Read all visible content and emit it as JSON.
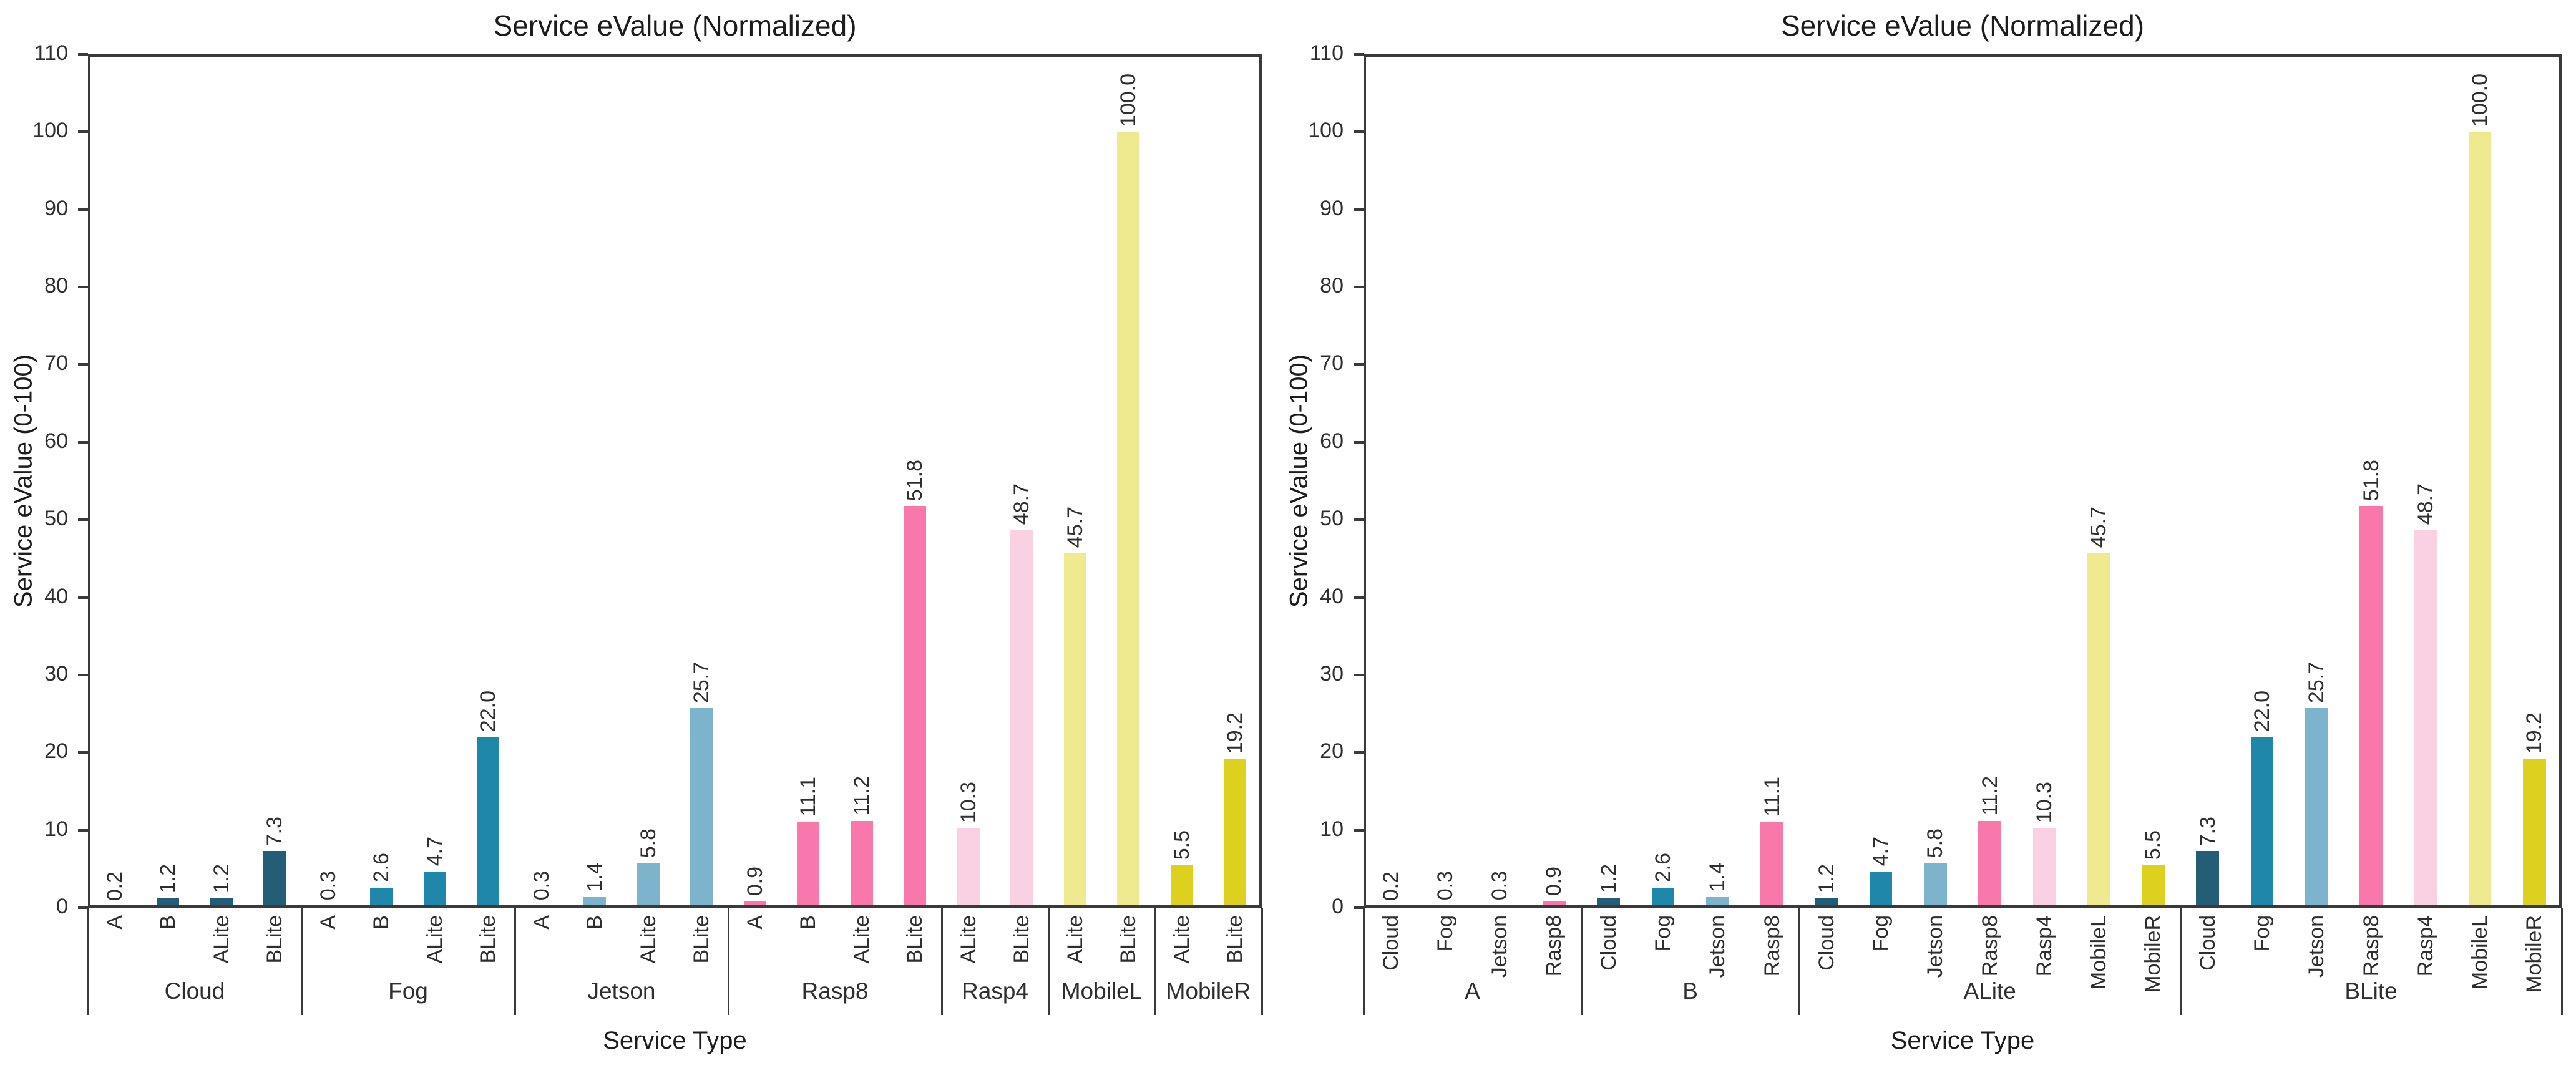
{
  "figure": {
    "background": "#ffffff",
    "axis_color": "#3a3a3a",
    "text_color": "#2e2e2e"
  },
  "palette": {
    "Cloud": "#245d76",
    "Fog": "#1e87aa",
    "Jetson": "#7db3cd",
    "Rasp8": "#f878ab",
    "Rasp4": "#fad1e2",
    "MobileL": "#efe98f",
    "MobileR": "#ddd01f"
  },
  "chart_data": [
    {
      "type": "bar",
      "title": "Service eValue (Normalized)",
      "xlabel": "Service Type",
      "ylabel": "Service eValue (0-100)",
      "ylim": [
        0,
        110
      ],
      "ytick_step": 10,
      "ytick_labels": [
        "0",
        "10",
        "20",
        "30",
        "40",
        "50",
        "60",
        "70",
        "80",
        "90",
        "100",
        "110"
      ],
      "grid": false,
      "legend": "none",
      "bar_label_rotation": -90,
      "category_label_rotation": -90,
      "grouping": "by-platform",
      "groups": [
        {
          "label": "Cloud",
          "bars": [
            {
              "category": "A",
              "value": 0.2,
              "label": "0.2",
              "color_key": "Cloud"
            },
            {
              "category": "B",
              "value": 1.2,
              "label": "1.2",
              "color_key": "Cloud"
            },
            {
              "category": "ALite",
              "value": 1.2,
              "label": "1.2",
              "color_key": "Cloud"
            },
            {
              "category": "BLite",
              "value": 7.3,
              "label": "7.3",
              "color_key": "Cloud"
            }
          ]
        },
        {
          "label": "Fog",
          "bars": [
            {
              "category": "A",
              "value": 0.3,
              "label": "0.3",
              "color_key": "Fog"
            },
            {
              "category": "B",
              "value": 2.6,
              "label": "2.6",
              "color_key": "Fog"
            },
            {
              "category": "ALite",
              "value": 4.7,
              "label": "4.7",
              "color_key": "Fog"
            },
            {
              "category": "BLite",
              "value": 22.0,
              "label": "22.0",
              "color_key": "Fog"
            }
          ]
        },
        {
          "label": "Jetson",
          "bars": [
            {
              "category": "A",
              "value": 0.3,
              "label": "0.3",
              "color_key": "Jetson"
            },
            {
              "category": "B",
              "value": 1.4,
              "label": "1.4",
              "color_key": "Jetson"
            },
            {
              "category": "ALite",
              "value": 5.8,
              "label": "5.8",
              "color_key": "Jetson"
            },
            {
              "category": "BLite",
              "value": 25.7,
              "label": "25.7",
              "color_key": "Jetson"
            }
          ]
        },
        {
          "label": "Rasp8",
          "bars": [
            {
              "category": "A",
              "value": 0.9,
              "label": "0.9",
              "color_key": "Rasp8"
            },
            {
              "category": "B",
              "value": 11.1,
              "label": "11.1",
              "color_key": "Rasp8"
            },
            {
              "category": "ALite",
              "value": 11.2,
              "label": "11.2",
              "color_key": "Rasp8"
            },
            {
              "category": "BLite",
              "value": 51.8,
              "label": "51.8",
              "color_key": "Rasp8"
            }
          ]
        },
        {
          "label": "Rasp4",
          "bars": [
            {
              "category": "ALite",
              "value": 10.3,
              "label": "10.3",
              "color_key": "Rasp4"
            },
            {
              "category": "BLite",
              "value": 48.7,
              "label": "48.7",
              "color_key": "Rasp4"
            }
          ]
        },
        {
          "label": "MobileL",
          "bars": [
            {
              "category": "ALite",
              "value": 45.7,
              "label": "45.7",
              "color_key": "MobileL"
            },
            {
              "category": "BLite",
              "value": 100.0,
              "label": "100.0",
              "color_key": "MobileL"
            }
          ]
        },
        {
          "label": "MobileR",
          "bars": [
            {
              "category": "ALite",
              "value": 5.5,
              "label": "5.5",
              "color_key": "MobileR"
            },
            {
              "category": "BLite",
              "value": 19.2,
              "label": "19.2",
              "color_key": "MobileR"
            }
          ]
        }
      ]
    },
    {
      "type": "bar",
      "title": "Service eValue (Normalized)",
      "xlabel": "Service Type",
      "ylabel": "Service eValue (0-100)",
      "ylim": [
        0,
        110
      ],
      "ytick_step": 10,
      "ytick_labels": [
        "0",
        "10",
        "20",
        "30",
        "40",
        "50",
        "60",
        "70",
        "80",
        "90",
        "100",
        "110"
      ],
      "grid": false,
      "legend": "none",
      "bar_label_rotation": -90,
      "category_label_rotation": -90,
      "grouping": "by-service-type",
      "groups": [
        {
          "label": "A",
          "bars": [
            {
              "category": "Cloud",
              "value": 0.2,
              "label": "0.2",
              "color_key": "Cloud"
            },
            {
              "category": "Fog",
              "value": 0.3,
              "label": "0.3",
              "color_key": "Fog"
            },
            {
              "category": "Jetson",
              "value": 0.3,
              "label": "0.3",
              "color_key": "Jetson"
            },
            {
              "category": "Rasp8",
              "value": 0.9,
              "label": "0.9",
              "color_key": "Rasp8"
            }
          ]
        },
        {
          "label": "B",
          "bars": [
            {
              "category": "Cloud",
              "value": 1.2,
              "label": "1.2",
              "color_key": "Cloud"
            },
            {
              "category": "Fog",
              "value": 2.6,
              "label": "2.6",
              "color_key": "Fog"
            },
            {
              "category": "Jetson",
              "value": 1.4,
              "label": "1.4",
              "color_key": "Jetson"
            },
            {
              "category": "Rasp8",
              "value": 11.1,
              "label": "11.1",
              "color_key": "Rasp8"
            }
          ]
        },
        {
          "label": "ALite",
          "bars": [
            {
              "category": "Cloud",
              "value": 1.2,
              "label": "1.2",
              "color_key": "Cloud"
            },
            {
              "category": "Fog",
              "value": 4.7,
              "label": "4.7",
              "color_key": "Fog"
            },
            {
              "category": "Jetson",
              "value": 5.8,
              "label": "5.8",
              "color_key": "Jetson"
            },
            {
              "category": "Rasp8",
              "value": 11.2,
              "label": "11.2",
              "color_key": "Rasp8"
            },
            {
              "category": "Rasp4",
              "value": 10.3,
              "label": "10.3",
              "color_key": "Rasp4"
            },
            {
              "category": "MobileL",
              "value": 45.7,
              "label": "45.7",
              "color_key": "MobileL"
            },
            {
              "category": "MobileR",
              "value": 5.5,
              "label": "5.5",
              "color_key": "MobileR"
            }
          ]
        },
        {
          "label": "BLite",
          "bars": [
            {
              "category": "Cloud",
              "value": 7.3,
              "label": "7.3",
              "color_key": "Cloud"
            },
            {
              "category": "Fog",
              "value": 22.0,
              "label": "22.0",
              "color_key": "Fog"
            },
            {
              "category": "Jetson",
              "value": 25.7,
              "label": "25.7",
              "color_key": "Jetson"
            },
            {
              "category": "Rasp8",
              "value": 51.8,
              "label": "51.8",
              "color_key": "Rasp8"
            },
            {
              "category": "Rasp4",
              "value": 48.7,
              "label": "48.7",
              "color_key": "Rasp4"
            },
            {
              "category": "MobileL",
              "value": 100.0,
              "label": "100.0",
              "color_key": "MobileL"
            },
            {
              "category": "MobileR",
              "value": 19.2,
              "label": "19.2",
              "color_key": "MobileR"
            }
          ]
        }
      ]
    }
  ]
}
